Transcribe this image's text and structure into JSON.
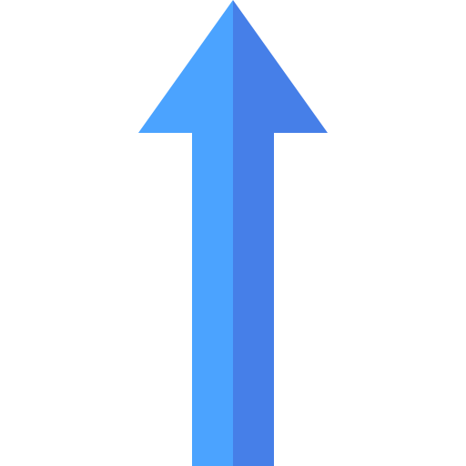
{
  "icon": {
    "name": "arrow-up-icon",
    "colors": {
      "background": "#ffffff",
      "light": "#4BA3FF",
      "dark": "#467FE8"
    }
  }
}
